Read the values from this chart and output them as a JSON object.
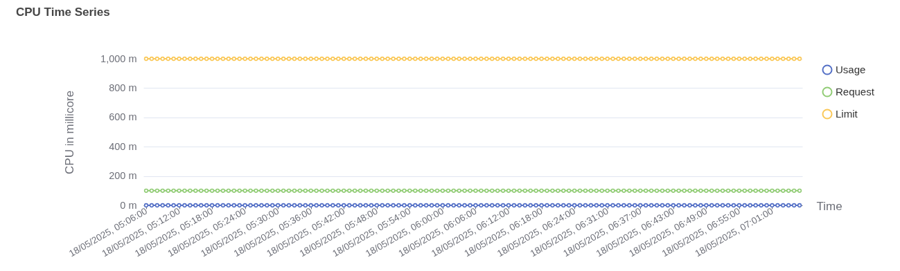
{
  "chart_data": {
    "type": "line",
    "title": "CPU Time Series",
    "xlabel": "Time",
    "ylabel": "CPU in millicore",
    "categories": [
      "18/05/2025, 05:06:00",
      null,
      null,
      null,
      null,
      null,
      "18/05/2025, 05:12:00",
      null,
      null,
      null,
      null,
      null,
      "18/05/2025, 05:18:00",
      null,
      null,
      null,
      null,
      null,
      "18/05/2025, 05:24:00",
      null,
      null,
      null,
      null,
      null,
      "18/05/2025, 05:30:00",
      null,
      null,
      null,
      null,
      null,
      "18/05/2025, 05:36:00",
      null,
      null,
      null,
      null,
      null,
      "18/05/2025, 05:42:00",
      null,
      null,
      null,
      null,
      null,
      "18/05/2025, 05:48:00",
      null,
      null,
      null,
      null,
      null,
      "18/05/2025, 05:54:00",
      null,
      null,
      null,
      null,
      null,
      "18/05/2025, 06:00:00",
      null,
      null,
      null,
      null,
      null,
      "18/05/2025, 06:06:00",
      null,
      null,
      null,
      null,
      null,
      "18/05/2025, 06:12:00",
      null,
      null,
      null,
      null,
      null,
      "18/05/2025, 06:18:00",
      null,
      null,
      null,
      null,
      null,
      "18/05/2025, 06:24:00",
      null,
      null,
      null,
      null,
      null,
      "18/05/2025, 06:31:00",
      null,
      null,
      null,
      null,
      null,
      "18/05/2025, 06:37:00",
      null,
      null,
      null,
      null,
      null,
      "18/05/2025, 06:43:00",
      null,
      null,
      null,
      null,
      null,
      "18/05/2025, 06:49:00",
      null,
      null,
      null,
      null,
      null,
      "18/05/2025, 06:55:00",
      null,
      null,
      null,
      null,
      null,
      "18/05/2025, 07:01:00",
      null,
      null,
      null,
      null,
      null
    ],
    "series": [
      {
        "name": "Usage",
        "color": "#5470c6",
        "values": [
          0,
          0,
          0,
          0,
          0,
          0,
          0,
          0,
          0,
          0,
          0,
          0,
          0,
          0,
          0,
          0,
          0,
          0,
          0,
          0,
          0,
          0,
          0,
          0,
          0,
          0,
          0,
          0,
          0,
          0,
          0,
          0,
          0,
          0,
          0,
          0,
          0,
          0,
          0,
          0,
          0,
          0,
          0,
          0,
          0,
          0,
          0,
          0,
          0,
          0,
          0,
          0,
          0,
          0,
          0,
          0,
          0,
          0,
          0,
          0,
          0,
          0,
          0,
          0,
          0,
          0,
          0,
          0,
          0,
          0,
          0,
          0,
          0,
          0,
          0,
          0,
          0,
          0,
          0,
          0,
          0,
          0,
          0,
          0,
          0,
          0,
          0,
          0,
          0,
          0,
          0,
          0,
          0,
          0,
          0,
          0,
          0,
          0,
          0,
          0,
          0,
          0,
          0,
          0,
          0,
          0,
          0,
          0,
          0,
          0,
          0,
          0,
          0,
          0,
          0,
          0,
          0,
          0,
          0,
          0
        ]
      },
      {
        "name": "Request",
        "color": "#91cc75",
        "values": [
          100,
          100,
          100,
          100,
          100,
          100,
          100,
          100,
          100,
          100,
          100,
          100,
          100,
          100,
          100,
          100,
          100,
          100,
          100,
          100,
          100,
          100,
          100,
          100,
          100,
          100,
          100,
          100,
          100,
          100,
          100,
          100,
          100,
          100,
          100,
          100,
          100,
          100,
          100,
          100,
          100,
          100,
          100,
          100,
          100,
          100,
          100,
          100,
          100,
          100,
          100,
          100,
          100,
          100,
          100,
          100,
          100,
          100,
          100,
          100,
          100,
          100,
          100,
          100,
          100,
          100,
          100,
          100,
          100,
          100,
          100,
          100,
          100,
          100,
          100,
          100,
          100,
          100,
          100,
          100,
          100,
          100,
          100,
          100,
          100,
          100,
          100,
          100,
          100,
          100,
          100,
          100,
          100,
          100,
          100,
          100,
          100,
          100,
          100,
          100,
          100,
          100,
          100,
          100,
          100,
          100,
          100,
          100,
          100,
          100,
          100,
          100,
          100,
          100,
          100,
          100,
          100,
          100,
          100,
          100
        ]
      },
      {
        "name": "Limit",
        "color": "#fac858",
        "values": [
          1000,
          1000,
          1000,
          1000,
          1000,
          1000,
          1000,
          1000,
          1000,
          1000,
          1000,
          1000,
          1000,
          1000,
          1000,
          1000,
          1000,
          1000,
          1000,
          1000,
          1000,
          1000,
          1000,
          1000,
          1000,
          1000,
          1000,
          1000,
          1000,
          1000,
          1000,
          1000,
          1000,
          1000,
          1000,
          1000,
          1000,
          1000,
          1000,
          1000,
          1000,
          1000,
          1000,
          1000,
          1000,
          1000,
          1000,
          1000,
          1000,
          1000,
          1000,
          1000,
          1000,
          1000,
          1000,
          1000,
          1000,
          1000,
          1000,
          1000,
          1000,
          1000,
          1000,
          1000,
          1000,
          1000,
          1000,
          1000,
          1000,
          1000,
          1000,
          1000,
          1000,
          1000,
          1000,
          1000,
          1000,
          1000,
          1000,
          1000,
          1000,
          1000,
          1000,
          1000,
          1000,
          1000,
          1000,
          1000,
          1000,
          1000,
          1000,
          1000,
          1000,
          1000,
          1000,
          1000,
          1000,
          1000,
          1000,
          1000,
          1000,
          1000,
          1000,
          1000,
          1000,
          1000,
          1000,
          1000,
          1000,
          1000,
          1000,
          1000,
          1000,
          1000,
          1000,
          1000,
          1000,
          1000,
          1000,
          1000
        ]
      }
    ],
    "ylim": [
      0,
      1000
    ],
    "yticks": [
      {
        "value": 0,
        "label": "0 m"
      },
      {
        "value": 200,
        "label": "200 m"
      },
      {
        "value": 400,
        "label": "400 m"
      },
      {
        "value": 600,
        "label": "600 m"
      },
      {
        "value": 800,
        "label": "800 m"
      },
      {
        "value": 1000,
        "label": "1,000 m"
      }
    ],
    "grid": "y",
    "legend": "top right",
    "marker": "circle",
    "line_style": "solid"
  }
}
